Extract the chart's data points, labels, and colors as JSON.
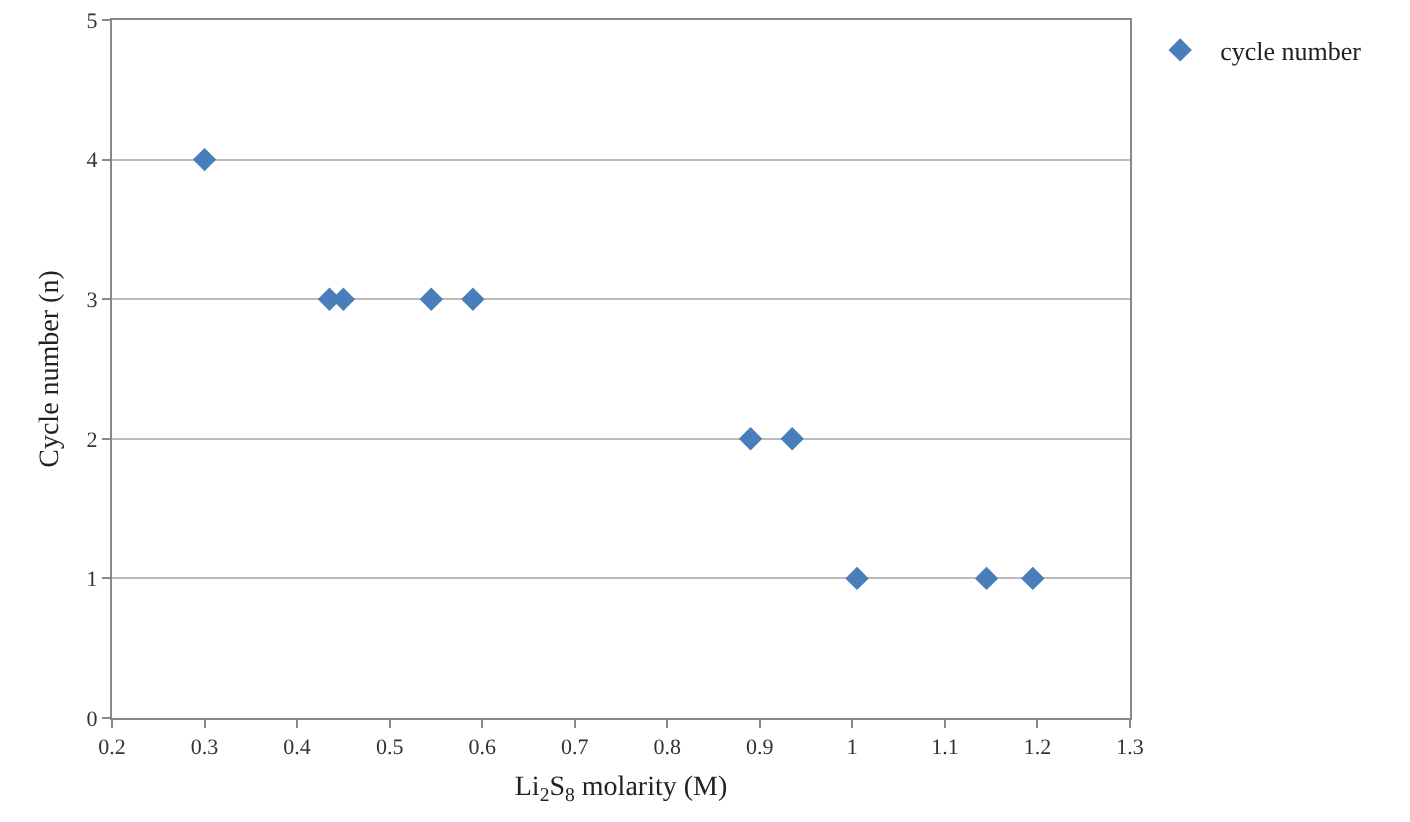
{
  "chart_data": {
    "type": "scatter",
    "xlabel": "Li$_{2}$S$_{8}$ molarity (M)",
    "ylabel": "Cycle number (n)",
    "x": [
      0.3,
      0.435,
      0.45,
      0.545,
      0.59,
      0.89,
      0.935,
      1.005,
      1.145,
      1.195
    ],
    "series": [
      {
        "name": "cycle number",
        "color": "#4a7ebb",
        "values": [
          4,
          3,
          3,
          3,
          3,
          2,
          2,
          1,
          1,
          1
        ]
      }
    ],
    "xlim": [
      0.2,
      1.3
    ],
    "xticks": [
      0.2,
      0.3,
      0.4,
      0.5,
      0.6,
      0.7,
      0.8,
      0.9,
      1,
      1.1,
      1.2,
      1.3
    ],
    "ylim": [
      0,
      5
    ],
    "yticks": [
      0,
      1,
      2,
      3,
      4,
      5
    ],
    "grid": "y",
    "legend": "top right",
    "marker": "diamond"
  }
}
